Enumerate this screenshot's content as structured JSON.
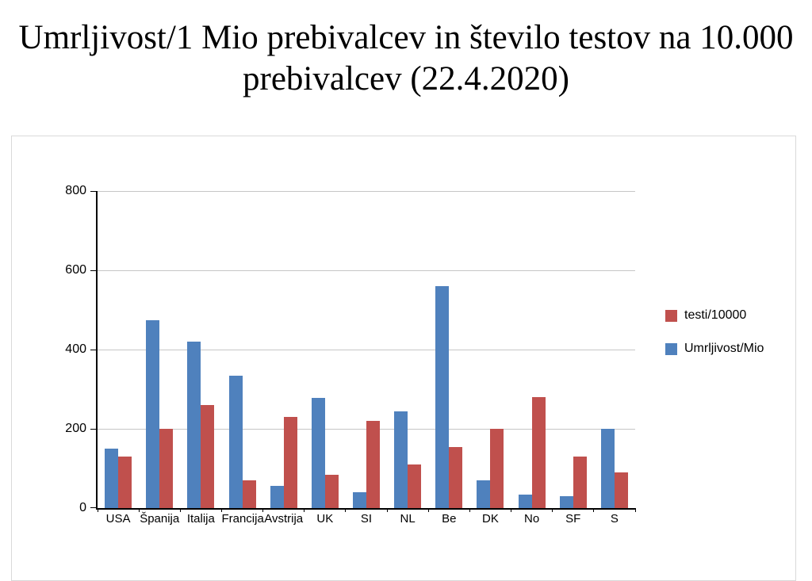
{
  "page": {
    "title": "Umrljivost/1 Mio prebivalcev in število testov na 10.000 prebivalcev (22.4.2020)"
  },
  "chart_data": {
    "type": "bar",
    "title": "Umrljivost/1 Mio prebivalcev in število testov na 10.000 prebivalcev (22.4.2020)",
    "categories": [
      "USA",
      "Španija",
      "Italija",
      "Francija",
      "Avstrija",
      "UK",
      "SI",
      "NL",
      "Be",
      "DK",
      "No",
      "SF",
      "S"
    ],
    "series": [
      {
        "name": "testi/10000",
        "color": "#C0504D",
        "values": [
          130,
          200,
          260,
          70,
          230,
          85,
          220,
          110,
          155,
          200,
          280,
          130,
          90
        ]
      },
      {
        "name": "Umrljivost/Mio",
        "color": "#4F81BD",
        "values": [
          150,
          475,
          420,
          335,
          57,
          278,
          40,
          245,
          560,
          70,
          35,
          30,
          200
        ]
      }
    ],
    "bar_draw_order": [
      1,
      0
    ],
    "ylim": [
      0,
      800
    ],
    "yticks": [
      0,
      200,
      400,
      600,
      800
    ],
    "grid": true,
    "legend_position": "right-outside",
    "axis_color": "#000000",
    "gridline_color": "#c6c6c6"
  }
}
